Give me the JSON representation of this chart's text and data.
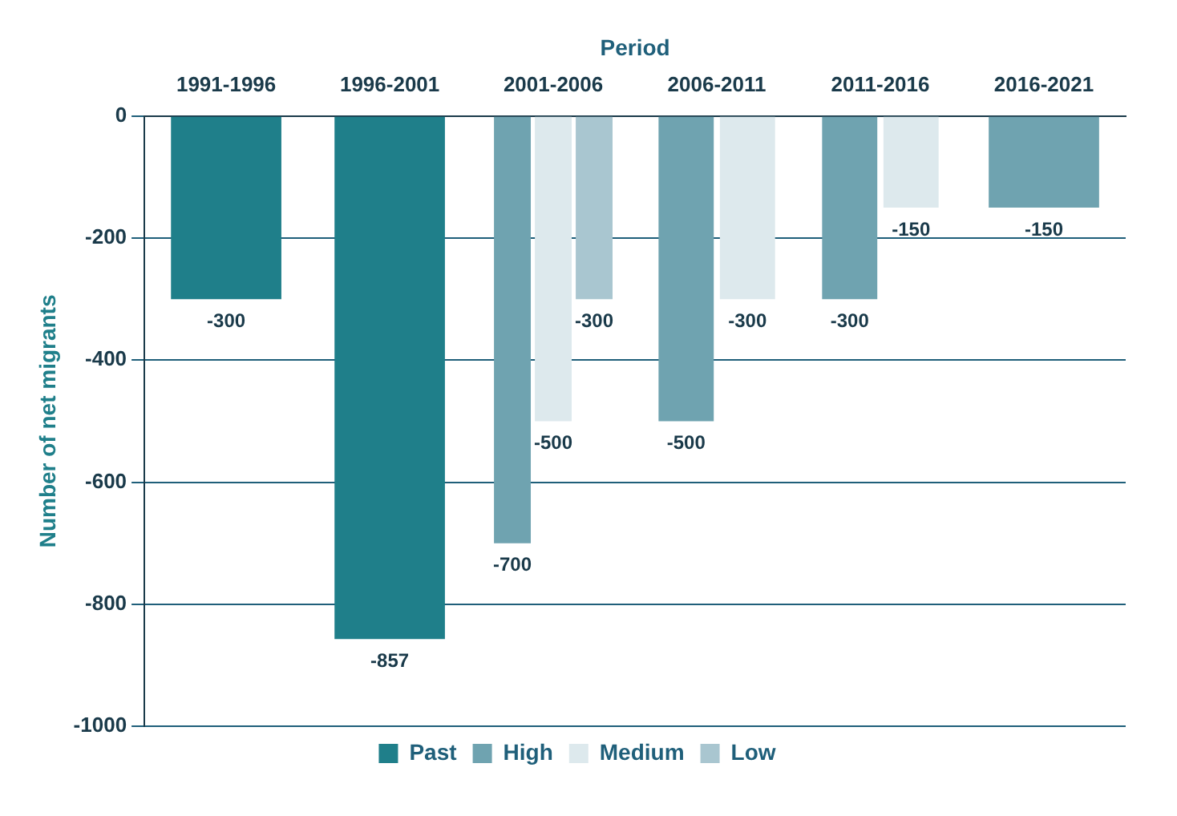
{
  "chart_data": {
    "type": "bar",
    "xlabel": "Period",
    "ylabel": "Number of net migrants",
    "categories": [
      "1991-1996",
      "1996-2001",
      "2001-2006",
      "2006-2011",
      "2011-2016",
      "2016-2021"
    ],
    "series": [
      {
        "name": "Past",
        "color": "#1f7f8a",
        "values": [
          -300,
          -857,
          null,
          null,
          null,
          null
        ]
      },
      {
        "name": "High",
        "color": "#6fa3b0",
        "values": [
          null,
          null,
          -700,
          -500,
          -300,
          -150
        ]
      },
      {
        "name": "Medium",
        "color": "#dde9ed",
        "values": [
          null,
          null,
          -500,
          -300,
          -150,
          null
        ]
      },
      {
        "name": "Low",
        "color": "#a9c6d0",
        "values": [
          null,
          null,
          -300,
          null,
          null,
          null
        ]
      }
    ],
    "ylim": [
      -1000,
      0
    ],
    "yticks": [
      0,
      -200,
      -400,
      -600,
      -800,
      -1000
    ],
    "grid": "y",
    "legend": "bottom",
    "data_labels": true
  }
}
